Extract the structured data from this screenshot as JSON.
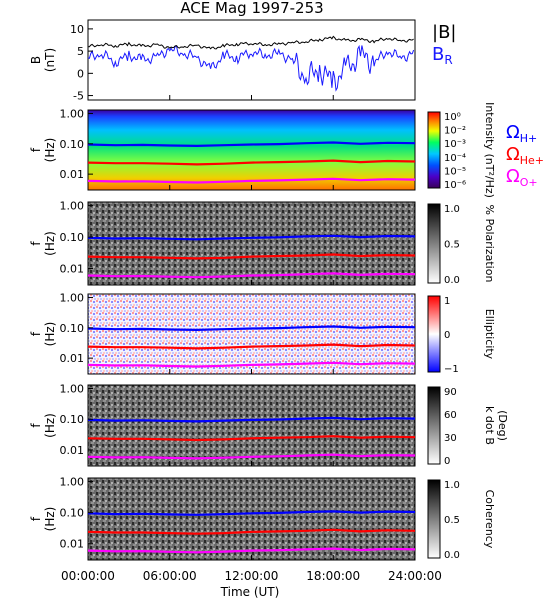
{
  "title": "ACE Mag 1997-253",
  "xlabel": "Time (UT)",
  "x_ticks": [
    "00:00:00",
    "06:00:00",
    "12:00:00",
    "18:00:00",
    "24:00:00"
  ],
  "colors": {
    "b_total": "#000000",
    "b_radial": "#1a1aff",
    "h_gyro": "#0000ff",
    "he_gyro": "#ff0000",
    "o_gyro": "#ff00ff"
  },
  "legend_b": {
    "total": "|B|",
    "radial": "B",
    "radial_sub": "R"
  },
  "legend_gyro": [
    {
      "symbol": "Ω",
      "sub": "H+",
      "color": "#0000ff"
    },
    {
      "symbol": "Ω",
      "sub": "He+",
      "color": "#ff0000"
    },
    {
      "symbol": "Ω",
      "sub": "O+",
      "color": "#ff00ff"
    }
  ],
  "chart_data": [
    {
      "type": "line",
      "panel": "magnetic-field",
      "ylabel_main": "B",
      "ylabel_unit": "(nT)",
      "xlim": [
        0,
        24
      ],
      "ylim": [
        -6,
        12
      ],
      "y_ticks": [
        "-5",
        "0",
        "5",
        "10"
      ],
      "y_tick_values": [
        -5,
        0,
        5,
        10
      ],
      "series": [
        {
          "name": "|B|",
          "x": [
            0,
            1,
            2,
            3,
            4,
            5,
            6,
            7,
            8,
            9,
            10,
            11,
            12,
            13,
            14,
            15,
            16,
            17,
            18,
            19,
            20,
            21,
            22,
            23,
            24
          ],
          "values": [
            6.0,
            6.5,
            6.2,
            6.6,
            6.1,
            6.4,
            5.8,
            6.0,
            6.3,
            5.5,
            6.2,
            6.6,
            6.8,
            6.4,
            6.6,
            6.9,
            7.1,
            7.6,
            8.0,
            7.3,
            7.6,
            7.2,
            7.9,
            7.3,
            7.5
          ]
        },
        {
          "name": "B",
          "x": [
            0,
            1,
            2,
            3,
            4,
            5,
            6,
            7,
            8,
            9,
            10,
            11,
            12,
            13,
            14,
            15,
            16,
            17,
            18,
            19,
            20,
            21,
            22,
            23,
            24
          ],
          "values": [
            3.5,
            4.5,
            2.5,
            4.0,
            3.0,
            3.5,
            5.5,
            4.5,
            3.5,
            1.0,
            4.0,
            3.5,
            5.0,
            4.0,
            4.5,
            3.0,
            -1.0,
            1.0,
            -2.0,
            1.0,
            4.0,
            2.5,
            5.0,
            3.5,
            4.5
          ]
        }
      ]
    },
    {
      "type": "heatmap",
      "panel": "intensity",
      "ylabel_main": "f",
      "ylabel_unit": "(Hz)",
      "ylim": [
        0.003,
        1.0
      ],
      "y_ticks": [
        "1.00",
        "0.10",
        "0.01"
      ],
      "colorbar_label": "Intensity (nT²/Hz)",
      "colorbar_ticks": [
        "10⁰",
        "10⁻²",
        "10⁻³",
        "10⁻⁴",
        "10⁻⁵",
        "10⁻⁶"
      ]
    },
    {
      "type": "heatmap",
      "panel": "polarization",
      "ylabel_main": "f",
      "ylabel_unit": "(Hz)",
      "y_ticks": [
        "1.00",
        "0.10",
        "0.01"
      ],
      "colorbar_label": "% Polarization",
      "colorbar_ticks": [
        "1.0",
        "0.5",
        "0.0"
      ]
    },
    {
      "type": "heatmap",
      "panel": "ellipticity",
      "ylabel_main": "f",
      "ylabel_unit": "(Hz)",
      "y_ticks": [
        "1.00",
        "0.10",
        "0.01"
      ],
      "colorbar_label": "Ellipticity",
      "colorbar_ticks": [
        "1",
        "0",
        "−1"
      ]
    },
    {
      "type": "heatmap",
      "panel": "k-dot-b",
      "ylabel_main": "f",
      "ylabel_unit": "(Hz)",
      "y_ticks": [
        "1.00",
        "0.10",
        "0.01"
      ],
      "colorbar_label": "k dot B",
      "colorbar_label2": "(Deg)",
      "colorbar_ticks": [
        "90",
        "60",
        "30",
        "0"
      ]
    },
    {
      "type": "heatmap",
      "panel": "coherency",
      "ylabel_main": "f",
      "ylabel_unit": "(Hz)",
      "y_ticks": [
        "1.00",
        "0.10",
        "0.01"
      ],
      "colorbar_label": "Coherency",
      "colorbar_ticks": [
        "1.0",
        "0.5",
        "0.0"
      ]
    }
  ],
  "gyrofrequency_hz": {
    "x": [
      0,
      2,
      4,
      6,
      8,
      10,
      12,
      14,
      16,
      18,
      20,
      22,
      24
    ],
    "H+": [
      0.095,
      0.09,
      0.092,
      0.088,
      0.085,
      0.09,
      0.095,
      0.098,
      0.105,
      0.11,
      0.1,
      0.108,
      0.105
    ],
    "He+": [
      0.024,
      0.023,
      0.023,
      0.022,
      0.021,
      0.022,
      0.024,
      0.025,
      0.026,
      0.028,
      0.025,
      0.027,
      0.026
    ],
    "O+": [
      0.006,
      0.0057,
      0.0058,
      0.0055,
      0.0053,
      0.0056,
      0.006,
      0.0062,
      0.0066,
      0.007,
      0.0063,
      0.0068,
      0.0066
    ]
  }
}
